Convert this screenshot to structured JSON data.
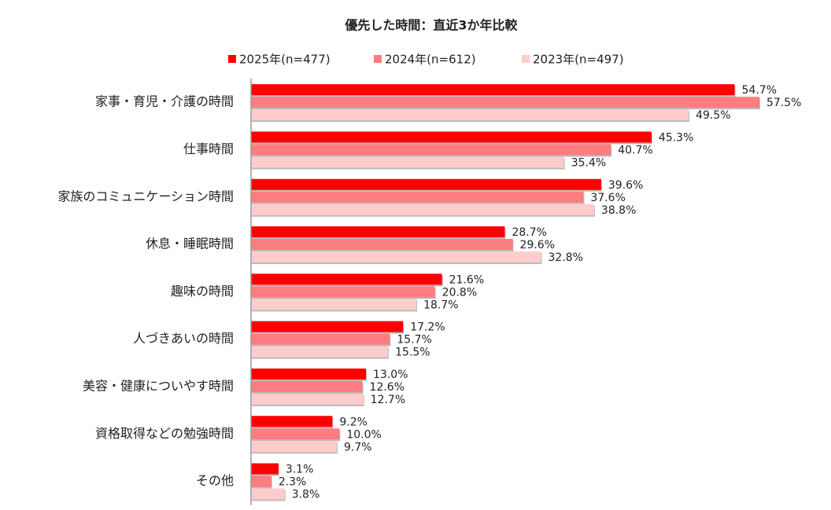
{
  "chart_data": {
    "type": "bar",
    "orientation": "horizontal",
    "title": "優先した時間：直近3か年比較",
    "categories": [
      "家事・育児・介護の時間",
      "仕事時間",
      "家族のコミュニケーション時間",
      "休息・睡眠時間",
      "趣味の時間",
      "人づきあいの時間",
      "美容・健康についやす時間",
      "資格取得などの勉強時間",
      "その他"
    ],
    "series": [
      {
        "name": "2025年(n=477)",
        "color": "#ff0000",
        "values": [
          54.7,
          45.3,
          39.6,
          28.7,
          21.6,
          17.2,
          13.0,
          9.2,
          3.1
        ],
        "value_labels": [
          "54.7%",
          "45.3%",
          "39.6%",
          "28.7%",
          "21.6%",
          "17.2%",
          "13.0%",
          "9.2%",
          "3.1%"
        ]
      },
      {
        "name": "2024年(n=612)",
        "color": "#ff7c80",
        "values": [
          57.5,
          40.7,
          37.6,
          29.6,
          20.8,
          15.7,
          12.6,
          10.0,
          2.3
        ],
        "value_labels": [
          "57.5%",
          "40.7%",
          "37.6%",
          "29.6%",
          "20.8%",
          "15.7%",
          "12.6%",
          "10.0%",
          "2.3%"
        ]
      },
      {
        "name": "2023年(n=497)",
        "color": "#ffcccc",
        "values": [
          49.5,
          35.4,
          38.8,
          32.8,
          18.7,
          15.5,
          12.7,
          9.7,
          3.8
        ],
        "value_labels": [
          "49.5%",
          "35.4%",
          "38.8%",
          "32.8%",
          "18.7%",
          "15.5%",
          "12.7%",
          "9.7%",
          "3.8%"
        ]
      }
    ],
    "legend": "top"
  }
}
